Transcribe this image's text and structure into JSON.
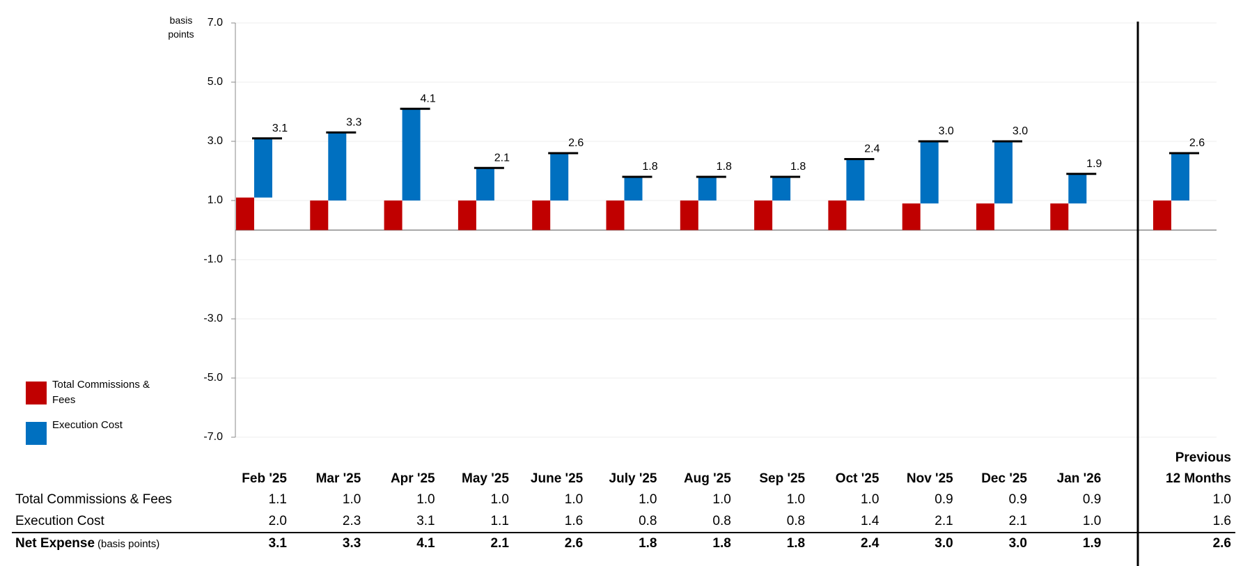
{
  "chart_data": {
    "type": "bar",
    "y_label": "basis points",
    "categories": [
      "Feb '25",
      "Mar '25",
      "Apr '25",
      "May '25",
      "June '25",
      "July '25",
      "Aug '25",
      "Sep '25",
      "Oct '25",
      "Nov '25",
      "Dec '25",
      "Jan '26",
      "Previous 12 Months"
    ],
    "series": [
      {
        "name": "Total Commissions & Fees",
        "color": "#c00000",
        "values": [
          1.1,
          1,
          1,
          1,
          1,
          1,
          1,
          1,
          1,
          0.9,
          0.9,
          0.9,
          1
        ],
        "value_labels": [
          "1.1",
          "1.0",
          "1.0",
          "1.0",
          "1.0",
          "1.0",
          "1.0",
          "1.0",
          "1.0",
          "0.9",
          "0.9",
          "0.9",
          "1.0"
        ]
      },
      {
        "name": "Execution Cost",
        "color": "#0070c0",
        "values": [
          2,
          2.3,
          3.1,
          1.1,
          1.6,
          0.8,
          0.8,
          0.8,
          1.4,
          2.1,
          2.1,
          1,
          1.6
        ],
        "value_labels": [
          "2.0",
          "2.3",
          "3.1",
          "1.1",
          "1.6",
          "0.8",
          "0.8",
          "0.8",
          "1.4",
          "2.1",
          "2.1",
          "1.0",
          "1.6"
        ]
      }
    ],
    "net": {
      "name": "Net Expense",
      "unit": "(basis points)",
      "color": "#000000",
      "values": [
        3.1,
        3.3,
        4.1,
        2.1,
        2.6,
        1.8,
        1.8,
        1.8,
        2.4,
        3,
        3,
        1.9,
        2.6
      ],
      "value_labels": [
        "3.1",
        "3.3",
        "4.1",
        "2.1",
        "2.6",
        "1.8",
        "1.8",
        "1.8",
        "2.4",
        "3.0",
        "3.0",
        "1.9",
        "2.6"
      ]
    },
    "ylim": [
      -7,
      7
    ],
    "yticks": [
      {
        "value": -7,
        "label": "-7.0"
      },
      {
        "value": -5,
        "label": "-5.0"
      },
      {
        "value": -3,
        "label": "-3.0"
      },
      {
        "value": -1,
        "label": "-1.0"
      },
      {
        "value": 1,
        "label": "1.0"
      },
      {
        "value": 3,
        "label": "3.0"
      },
      {
        "value": 5,
        "label": "5.0"
      },
      {
        "value": 7,
        "label": "7.0"
      }
    ],
    "grid": true
  }
}
